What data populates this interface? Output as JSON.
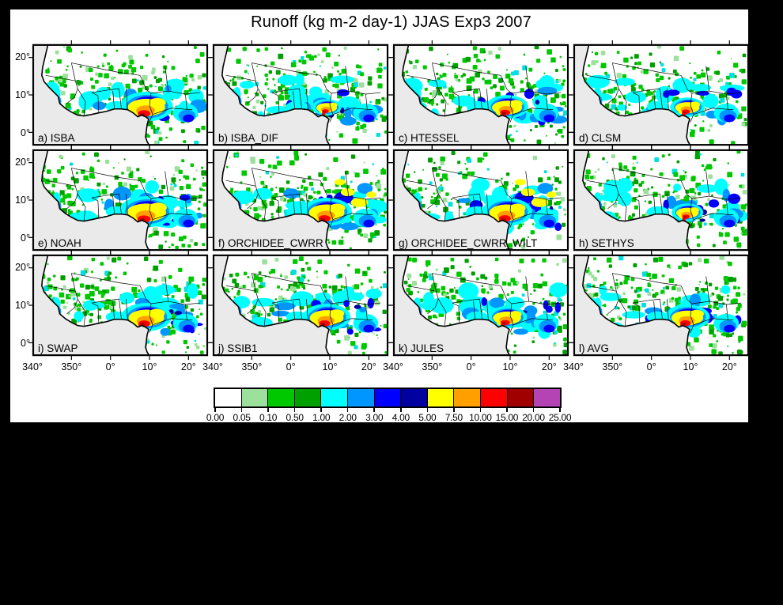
{
  "title": "Runoff (kg m-2 day-1) JJAS Exp3 2007",
  "panels": [
    {
      "id": "a",
      "label": "a) ISBA"
    },
    {
      "id": "b",
      "label": "b) ISBA_DIF"
    },
    {
      "id": "c",
      "label": "c) HTESSEL"
    },
    {
      "id": "d",
      "label": "d) CLSM"
    },
    {
      "id": "e",
      "label": "e) NOAH"
    },
    {
      "id": "f",
      "label": "f) ORCHIDEE_CWRR"
    },
    {
      "id": "g",
      "label": "g) ORCHIDEE_CWRR_WILT"
    },
    {
      "id": "h",
      "label": "h) SETHYS"
    },
    {
      "id": "i",
      "label": "i) SWAP"
    },
    {
      "id": "j",
      "label": "j) SSIB1"
    },
    {
      "id": "k",
      "label": "k) JULES"
    },
    {
      "id": "l",
      "label": "l) AVG"
    }
  ],
  "axes": {
    "x_ticks": [
      "340°",
      "350°",
      "0°",
      "10°",
      "20°"
    ],
    "y_ticks": [
      "20°",
      "10°",
      "0°"
    ]
  },
  "colorbar": {
    "tick_labels": [
      "0.00",
      "0.05",
      "0.10",
      "0.50",
      "1.00",
      "2.00",
      "3.00",
      "4.00",
      "5.00",
      "7.50",
      "10.00",
      "15.00",
      "20.00",
      "25.00"
    ],
    "colors": [
      "#ffffff",
      "#9be09b",
      "#00c800",
      "#00a000",
      "#00ffff",
      "#0096ff",
      "#0000ff",
      "#0000a0",
      "#ffff00",
      "#ffa000",
      "#ff0000",
      "#a00000",
      "#b444b4"
    ]
  },
  "map_colors": {
    "ocean": "#eaeaea",
    "land": "#ffffff",
    "coast": "#000000"
  },
  "chart_data": {
    "type": "heatmap",
    "title": "Runoff (kg m-2 day-1) JJAS Exp3 2007",
    "variable": "Runoff",
    "units": "kg m-2 day-1",
    "season": "JJAS",
    "experiment": "Exp3",
    "year": 2007,
    "panels": [
      "a) ISBA",
      "b) ISBA_DIF",
      "c) HTESSEL",
      "d) CLSM",
      "e) NOAH",
      "f) ORCHIDEE_CWRR",
      "g) ORCHIDEE_CWRR_WILT",
      "h) SETHYS",
      "i) SWAP",
      "j) SSIB1",
      "k) JULES",
      "l) AVG"
    ],
    "grid_layout": {
      "rows": 3,
      "cols": 4
    },
    "lon_tick_labels_deg": [
      "340",
      "350",
      "0",
      "10",
      "20"
    ],
    "lat_tick_labels_deg": [
      "20",
      "10",
      "0"
    ],
    "color_levels": [
      0.0,
      0.05,
      0.1,
      0.5,
      1.0,
      2.0,
      3.0,
      4.0,
      5.0,
      7.5,
      10.0,
      15.0,
      20.0,
      25.0
    ],
    "color_hex": [
      "#ffffff",
      "#9be09b",
      "#00c800",
      "#00a000",
      "#00ffff",
      "#0096ff",
      "#0000ff",
      "#0000a0",
      "#ffff00",
      "#ffa000",
      "#ff0000",
      "#a00000",
      "#b444b4"
    ],
    "legend_position": "bottom",
    "region": "West Africa (Gulf of Guinea)"
  }
}
